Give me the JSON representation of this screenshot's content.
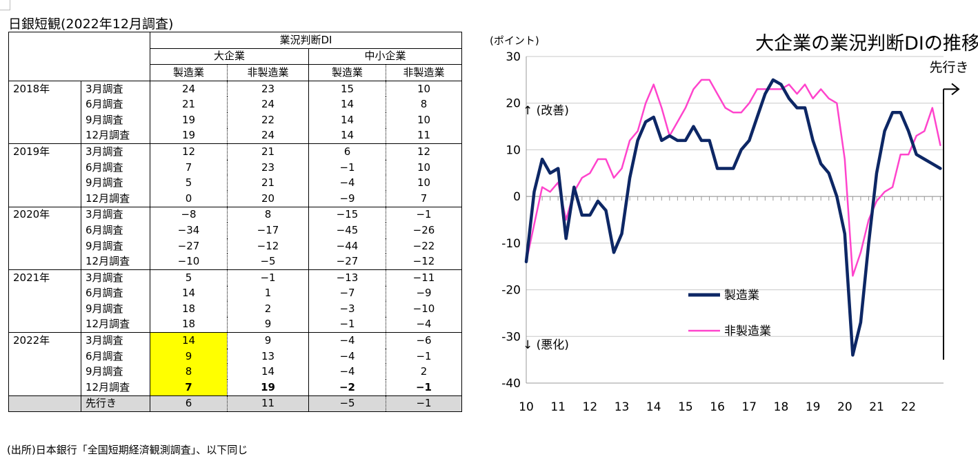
{
  "table": {
    "title": "日銀短観(2022年12月調査)",
    "header": {
      "di": "業況判断DI",
      "large": "大企業",
      "small": "中小企業",
      "manu": "製造業",
      "nonmanu": "非製造業"
    },
    "rows": [
      {
        "year": "2018年",
        "survey": "3月調査",
        "v": [
          "24",
          "23",
          "15",
          "10"
        ]
      },
      {
        "year": "",
        "survey": "6月調査",
        "v": [
          "21",
          "24",
          "14",
          "8"
        ]
      },
      {
        "year": "",
        "survey": "9月調査",
        "v": [
          "19",
          "22",
          "14",
          "10"
        ]
      },
      {
        "year": "",
        "survey": "12月調査",
        "v": [
          "19",
          "24",
          "14",
          "11"
        ]
      },
      {
        "year": "2019年",
        "survey": "3月調査",
        "v": [
          "12",
          "21",
          "6",
          "12"
        ]
      },
      {
        "year": "",
        "survey": "6月調査",
        "v": [
          "7",
          "23",
          "−1",
          "10"
        ]
      },
      {
        "year": "",
        "survey": "9月調査",
        "v": [
          "5",
          "21",
          "−4",
          "10"
        ]
      },
      {
        "year": "",
        "survey": "12月調査",
        "v": [
          "0",
          "20",
          "−9",
          "7"
        ]
      },
      {
        "year": "2020年",
        "survey": "3月調査",
        "v": [
          "−8",
          "8",
          "−15",
          "−1"
        ]
      },
      {
        "year": "",
        "survey": "6月調査",
        "v": [
          "−34",
          "−17",
          "−45",
          "−26"
        ]
      },
      {
        "year": "",
        "survey": "9月調査",
        "v": [
          "−27",
          "−12",
          "−44",
          "−22"
        ]
      },
      {
        "year": "",
        "survey": "12月調査",
        "v": [
          "−10",
          "−5",
          "−27",
          "−12"
        ]
      },
      {
        "year": "2021年",
        "survey": "3月調査",
        "v": [
          "5",
          "−1",
          "−13",
          "−11"
        ]
      },
      {
        "year": "",
        "survey": "6月調査",
        "v": [
          "14",
          "1",
          "−7",
          "−9"
        ]
      },
      {
        "year": "",
        "survey": "9月調査",
        "v": [
          "18",
          "2",
          "−3",
          "−10"
        ]
      },
      {
        "year": "",
        "survey": "12月調査",
        "v": [
          "18",
          "9",
          "−1",
          "−4"
        ]
      },
      {
        "year": "2022年",
        "survey": "3月調査",
        "v": [
          "14",
          "9",
          "−4",
          "−6"
        ]
      },
      {
        "year": "",
        "survey": "6月調査",
        "v": [
          "9",
          "13",
          "−4",
          "−1"
        ]
      },
      {
        "year": "",
        "survey": "9月調査",
        "v": [
          "8",
          "14",
          "−4",
          "2"
        ]
      },
      {
        "year": "",
        "survey": "12月調査",
        "v": [
          "7",
          "19",
          "−2",
          "−1"
        ]
      }
    ],
    "forecast": {
      "label": "先行き",
      "v": [
        "6",
        "11",
        "−5",
        "−1"
      ]
    },
    "highlight_color": "#ffff00",
    "forecast_bg": "#d9d9d9",
    "source": "(出所)日本銀行「全国短期経済観測調査」、以下同じ"
  },
  "chart_data": {
    "type": "line",
    "title": "大企業の業況判断DIの推移",
    "ylabel": "(ポイント)",
    "ylim": [
      -40,
      30
    ],
    "yticks": [
      -40,
      -30,
      -20,
      -10,
      0,
      10,
      20,
      30
    ],
    "xlim": [
      2010,
      2023.1
    ],
    "xtick_labels": [
      "10",
      "11",
      "12",
      "13",
      "14",
      "15",
      "16",
      "17",
      "18",
      "19",
      "20",
      "21",
      "22"
    ],
    "grid": true,
    "legend_position": "center-left",
    "annotations": {
      "improve": "↑ (改善)",
      "worsen": "↓ (悪化)",
      "forecast": "先行き"
    },
    "forecast_marker_x": 2023.1,
    "series": [
      {
        "name": "製造業",
        "color": "#0d2765",
        "points": [
          [
            2010.0,
            -14
          ],
          [
            2010.25,
            1
          ],
          [
            2010.5,
            8
          ],
          [
            2010.75,
            5
          ],
          [
            2011.0,
            6
          ],
          [
            2011.25,
            -9
          ],
          [
            2011.5,
            2
          ],
          [
            2011.75,
            -4
          ],
          [
            2012.0,
            -4
          ],
          [
            2012.25,
            -1
          ],
          [
            2012.5,
            -3
          ],
          [
            2012.75,
            -12
          ],
          [
            2013.0,
            -8
          ],
          [
            2013.25,
            4
          ],
          [
            2013.5,
            12
          ],
          [
            2013.75,
            16
          ],
          [
            2014.0,
            17
          ],
          [
            2014.25,
            12
          ],
          [
            2014.5,
            13
          ],
          [
            2014.75,
            12
          ],
          [
            2015.0,
            12
          ],
          [
            2015.25,
            15
          ],
          [
            2015.5,
            12
          ],
          [
            2015.75,
            12
          ],
          [
            2016.0,
            6
          ],
          [
            2016.25,
            6
          ],
          [
            2016.5,
            6
          ],
          [
            2016.75,
            10
          ],
          [
            2017.0,
            12
          ],
          [
            2017.25,
            17
          ],
          [
            2017.5,
            22
          ],
          [
            2017.75,
            25
          ],
          [
            2018.0,
            24
          ],
          [
            2018.25,
            21
          ],
          [
            2018.5,
            19
          ],
          [
            2018.75,
            19
          ],
          [
            2019.0,
            12
          ],
          [
            2019.25,
            7
          ],
          [
            2019.5,
            5
          ],
          [
            2019.75,
            0
          ],
          [
            2020.0,
            -8
          ],
          [
            2020.25,
            -34
          ],
          [
            2020.5,
            -27
          ],
          [
            2020.75,
            -10
          ],
          [
            2021.0,
            5
          ],
          [
            2021.25,
            14
          ],
          [
            2021.5,
            18
          ],
          [
            2021.75,
            18
          ],
          [
            2022.0,
            14
          ],
          [
            2022.25,
            9
          ],
          [
            2022.5,
            8
          ],
          [
            2022.75,
            7
          ],
          [
            2023.0,
            6
          ]
        ]
      },
      {
        "name": "非製造業",
        "color": "#ff44cc",
        "points": [
          [
            2010.0,
            -14
          ],
          [
            2010.25,
            -6
          ],
          [
            2010.5,
            2
          ],
          [
            2010.75,
            1
          ],
          [
            2011.0,
            3
          ],
          [
            2011.25,
            -5
          ],
          [
            2011.5,
            1
          ],
          [
            2011.75,
            4
          ],
          [
            2012.0,
            5
          ],
          [
            2012.25,
            8
          ],
          [
            2012.5,
            8
          ],
          [
            2012.75,
            4
          ],
          [
            2013.0,
            6
          ],
          [
            2013.25,
            12
          ],
          [
            2013.5,
            14
          ],
          [
            2013.75,
            20
          ],
          [
            2014.0,
            24
          ],
          [
            2014.25,
            19
          ],
          [
            2014.5,
            13
          ],
          [
            2014.75,
            16
          ],
          [
            2015.0,
            19
          ],
          [
            2015.25,
            23
          ],
          [
            2015.5,
            25
          ],
          [
            2015.75,
            25
          ],
          [
            2016.0,
            22
          ],
          [
            2016.25,
            19
          ],
          [
            2016.5,
            18
          ],
          [
            2016.75,
            18
          ],
          [
            2017.0,
            20
          ],
          [
            2017.25,
            23
          ],
          [
            2017.5,
            23
          ],
          [
            2017.75,
            23
          ],
          [
            2018.0,
            23
          ],
          [
            2018.25,
            24
          ],
          [
            2018.5,
            22
          ],
          [
            2018.75,
            24
          ],
          [
            2019.0,
            21
          ],
          [
            2019.25,
            23
          ],
          [
            2019.5,
            21
          ],
          [
            2019.75,
            20
          ],
          [
            2020.0,
            8
          ],
          [
            2020.25,
            -17
          ],
          [
            2020.5,
            -12
          ],
          [
            2020.75,
            -5
          ],
          [
            2021.0,
            -1
          ],
          [
            2021.25,
            1
          ],
          [
            2021.5,
            2
          ],
          [
            2021.75,
            9
          ],
          [
            2022.0,
            9
          ],
          [
            2022.25,
            13
          ],
          [
            2022.5,
            14
          ],
          [
            2022.75,
            19
          ],
          [
            2023.0,
            11
          ]
        ]
      }
    ]
  }
}
